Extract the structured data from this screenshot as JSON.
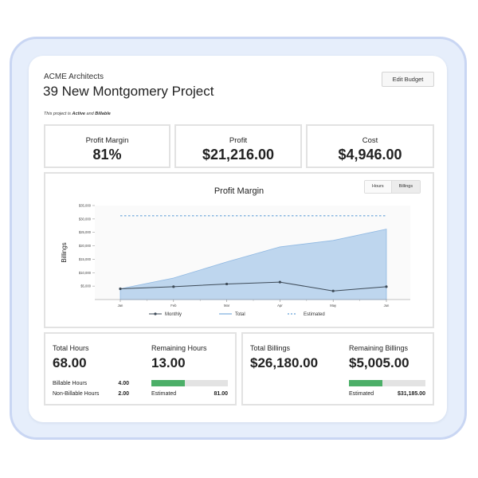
{
  "header": {
    "company": "ACME Architects",
    "title": "39 New Montgomery Project",
    "status_prefix": "This project is ",
    "status_active": "Active",
    "status_and": " and ",
    "status_billable": "Billable",
    "edit_button": "Edit Budget"
  },
  "kpis": [
    {
      "label": "Profit Margin",
      "value": "81%"
    },
    {
      "label": "Profit",
      "value": "$21,216.00"
    },
    {
      "label": "Cost",
      "value": "$4,946.00"
    }
  ],
  "chart_panel": {
    "toggle_hours": "Hours",
    "toggle_billings": "Billings",
    "active_toggle": "Billings"
  },
  "chart_data": {
    "type": "area",
    "title": "Profit Margin",
    "ylabel": "Billings",
    "xlabel": "",
    "categories": [
      "Jan",
      "Feb",
      "Mar",
      "Apr",
      "May",
      "Jun"
    ],
    "yticks": [
      5000,
      10000,
      15000,
      20000,
      25000,
      30000,
      35000
    ],
    "ytick_labels": [
      "$5,000",
      "$10,000",
      "$15,000",
      "$20,000",
      "$25,000",
      "$30,000",
      "$35,000"
    ],
    "ylim": [
      0,
      35000
    ],
    "grid": false,
    "legend_position": "bottom",
    "series": [
      {
        "name": "Monthly",
        "kind": "line-markers",
        "color": "#3d4a57",
        "values": [
          4000,
          4800,
          5800,
          6500,
          3200,
          4800
        ]
      },
      {
        "name": "Total",
        "kind": "area",
        "color": "#a9c9ea",
        "values": [
          4000,
          8000,
          14000,
          19600,
          22000,
          26200
        ]
      },
      {
        "name": "Estimated",
        "kind": "dashed",
        "color": "#7fb1df",
        "values": [
          31185,
          31185,
          31185,
          31185,
          31185,
          31185
        ]
      }
    ]
  },
  "hours": {
    "total_label": "Total Hours",
    "total_value": "68.00",
    "remaining_label": "Remaining Hours",
    "remaining_value": "13.00",
    "billable_label": "Billable Hours",
    "billable_value": "4.00",
    "nonbillable_label": "Non-Billable Hours",
    "nonbillable_value": "2.00",
    "estimated_label": "Estimated",
    "estimated_value": "81.00",
    "progress_fraction": 0.44
  },
  "billings": {
    "total_label": "Total Billings",
    "total_value": "$26,180.00",
    "remaining_label": "Remaining Billings",
    "remaining_value": "$5,005.00",
    "estimated_label": "Estimated",
    "estimated_value": "$31,185.00",
    "progress_fraction": 0.44
  },
  "colors": {
    "frame": "#e6eefb",
    "frame_border": "#c9d6f3",
    "progress": "#4caf68",
    "area_fill": "#a9c9ea",
    "monthly_line": "#3d4a57"
  }
}
